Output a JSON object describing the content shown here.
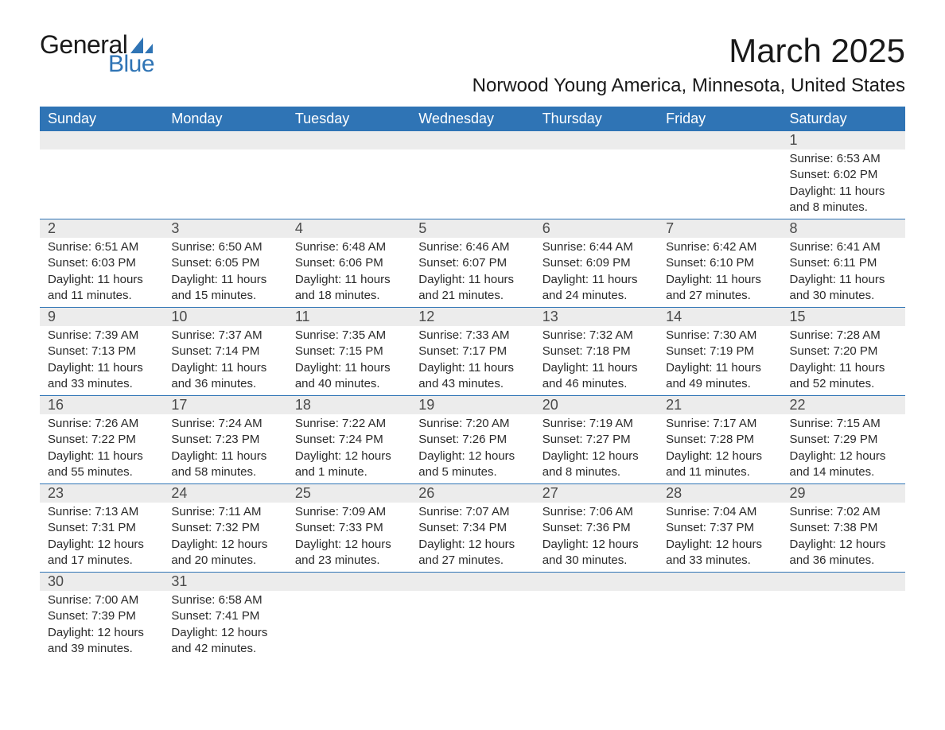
{
  "logo": {
    "word1": "General",
    "word2": "Blue",
    "shape_color": "#2f74b5"
  },
  "title": "March 2025",
  "location": "Norwood Young America, Minnesota, United States",
  "colors": {
    "header_bg": "#2f74b5",
    "header_text": "#ffffff",
    "daynum_bg": "#ececec",
    "row_border": "#2f74b5",
    "text": "#2a2a2a"
  },
  "typography": {
    "title_fontsize": 42,
    "location_fontsize": 24,
    "header_fontsize": 18,
    "daynum_fontsize": 18,
    "body_fontsize": 15
  },
  "day_headers": [
    "Sunday",
    "Monday",
    "Tuesday",
    "Wednesday",
    "Thursday",
    "Friday",
    "Saturday"
  ],
  "weeks": [
    [
      null,
      null,
      null,
      null,
      null,
      null,
      {
        "n": "1",
        "sunrise": "Sunrise: 6:53 AM",
        "sunset": "Sunset: 6:02 PM",
        "daylight": "Daylight: 11 hours and 8 minutes."
      }
    ],
    [
      {
        "n": "2",
        "sunrise": "Sunrise: 6:51 AM",
        "sunset": "Sunset: 6:03 PM",
        "daylight": "Daylight: 11 hours and 11 minutes."
      },
      {
        "n": "3",
        "sunrise": "Sunrise: 6:50 AM",
        "sunset": "Sunset: 6:05 PM",
        "daylight": "Daylight: 11 hours and 15 minutes."
      },
      {
        "n": "4",
        "sunrise": "Sunrise: 6:48 AM",
        "sunset": "Sunset: 6:06 PM",
        "daylight": "Daylight: 11 hours and 18 minutes."
      },
      {
        "n": "5",
        "sunrise": "Sunrise: 6:46 AM",
        "sunset": "Sunset: 6:07 PM",
        "daylight": "Daylight: 11 hours and 21 minutes."
      },
      {
        "n": "6",
        "sunrise": "Sunrise: 6:44 AM",
        "sunset": "Sunset: 6:09 PM",
        "daylight": "Daylight: 11 hours and 24 minutes."
      },
      {
        "n": "7",
        "sunrise": "Sunrise: 6:42 AM",
        "sunset": "Sunset: 6:10 PM",
        "daylight": "Daylight: 11 hours and 27 minutes."
      },
      {
        "n": "8",
        "sunrise": "Sunrise: 6:41 AM",
        "sunset": "Sunset: 6:11 PM",
        "daylight": "Daylight: 11 hours and 30 minutes."
      }
    ],
    [
      {
        "n": "9",
        "sunrise": "Sunrise: 7:39 AM",
        "sunset": "Sunset: 7:13 PM",
        "daylight": "Daylight: 11 hours and 33 minutes."
      },
      {
        "n": "10",
        "sunrise": "Sunrise: 7:37 AM",
        "sunset": "Sunset: 7:14 PM",
        "daylight": "Daylight: 11 hours and 36 minutes."
      },
      {
        "n": "11",
        "sunrise": "Sunrise: 7:35 AM",
        "sunset": "Sunset: 7:15 PM",
        "daylight": "Daylight: 11 hours and 40 minutes."
      },
      {
        "n": "12",
        "sunrise": "Sunrise: 7:33 AM",
        "sunset": "Sunset: 7:17 PM",
        "daylight": "Daylight: 11 hours and 43 minutes."
      },
      {
        "n": "13",
        "sunrise": "Sunrise: 7:32 AM",
        "sunset": "Sunset: 7:18 PM",
        "daylight": "Daylight: 11 hours and 46 minutes."
      },
      {
        "n": "14",
        "sunrise": "Sunrise: 7:30 AM",
        "sunset": "Sunset: 7:19 PM",
        "daylight": "Daylight: 11 hours and 49 minutes."
      },
      {
        "n": "15",
        "sunrise": "Sunrise: 7:28 AM",
        "sunset": "Sunset: 7:20 PM",
        "daylight": "Daylight: 11 hours and 52 minutes."
      }
    ],
    [
      {
        "n": "16",
        "sunrise": "Sunrise: 7:26 AM",
        "sunset": "Sunset: 7:22 PM",
        "daylight": "Daylight: 11 hours and 55 minutes."
      },
      {
        "n": "17",
        "sunrise": "Sunrise: 7:24 AM",
        "sunset": "Sunset: 7:23 PM",
        "daylight": "Daylight: 11 hours and 58 minutes."
      },
      {
        "n": "18",
        "sunrise": "Sunrise: 7:22 AM",
        "sunset": "Sunset: 7:24 PM",
        "daylight": "Daylight: 12 hours and 1 minute."
      },
      {
        "n": "19",
        "sunrise": "Sunrise: 7:20 AM",
        "sunset": "Sunset: 7:26 PM",
        "daylight": "Daylight: 12 hours and 5 minutes."
      },
      {
        "n": "20",
        "sunrise": "Sunrise: 7:19 AM",
        "sunset": "Sunset: 7:27 PM",
        "daylight": "Daylight: 12 hours and 8 minutes."
      },
      {
        "n": "21",
        "sunrise": "Sunrise: 7:17 AM",
        "sunset": "Sunset: 7:28 PM",
        "daylight": "Daylight: 12 hours and 11 minutes."
      },
      {
        "n": "22",
        "sunrise": "Sunrise: 7:15 AM",
        "sunset": "Sunset: 7:29 PM",
        "daylight": "Daylight: 12 hours and 14 minutes."
      }
    ],
    [
      {
        "n": "23",
        "sunrise": "Sunrise: 7:13 AM",
        "sunset": "Sunset: 7:31 PM",
        "daylight": "Daylight: 12 hours and 17 minutes."
      },
      {
        "n": "24",
        "sunrise": "Sunrise: 7:11 AM",
        "sunset": "Sunset: 7:32 PM",
        "daylight": "Daylight: 12 hours and 20 minutes."
      },
      {
        "n": "25",
        "sunrise": "Sunrise: 7:09 AM",
        "sunset": "Sunset: 7:33 PM",
        "daylight": "Daylight: 12 hours and 23 minutes."
      },
      {
        "n": "26",
        "sunrise": "Sunrise: 7:07 AM",
        "sunset": "Sunset: 7:34 PM",
        "daylight": "Daylight: 12 hours and 27 minutes."
      },
      {
        "n": "27",
        "sunrise": "Sunrise: 7:06 AM",
        "sunset": "Sunset: 7:36 PM",
        "daylight": "Daylight: 12 hours and 30 minutes."
      },
      {
        "n": "28",
        "sunrise": "Sunrise: 7:04 AM",
        "sunset": "Sunset: 7:37 PM",
        "daylight": "Daylight: 12 hours and 33 minutes."
      },
      {
        "n": "29",
        "sunrise": "Sunrise: 7:02 AM",
        "sunset": "Sunset: 7:38 PM",
        "daylight": "Daylight: 12 hours and 36 minutes."
      }
    ],
    [
      {
        "n": "30",
        "sunrise": "Sunrise: 7:00 AM",
        "sunset": "Sunset: 7:39 PM",
        "daylight": "Daylight: 12 hours and 39 minutes."
      },
      {
        "n": "31",
        "sunrise": "Sunrise: 6:58 AM",
        "sunset": "Sunset: 7:41 PM",
        "daylight": "Daylight: 12 hours and 42 minutes."
      },
      null,
      null,
      null,
      null,
      null
    ]
  ]
}
